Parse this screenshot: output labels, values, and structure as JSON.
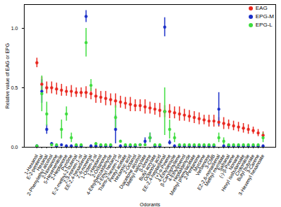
{
  "chart_data": {
    "type": "scatter",
    "x_label": "Odorants",
    "y_label": "Relative value of EAG or EPG",
    "categories": [
      "1-Hexanol",
      "E-2-pentenal",
      "Hexanal",
      "2-Phenylethyl alcohol",
      "2-Nonanone",
      "5-Hexenenitrile",
      "2-Heptanone",
      "Pyridine",
      "E-2-methyl-2-butenal",
      "Z-3-nonen-1-ol",
      "EE-2,4-hexadienal",
      "Z-6-nonenal",
      "1-Octen-3-ol",
      "1-Heptanol",
      "2-Octanone",
      "4-Ethylbenzaldehyde",
      "2-Ethyl hexanol",
      "Trans-2-hexen-1-ol",
      "Pentyl acetate",
      "Hexanoic acid",
      "2-Octanol",
      "Diacetone alcohol",
      "Methyl salicylate",
      "β-ionone",
      "Butyl acrylate",
      "Octanoic acid",
      "EE-2,4-heptadienal",
      "(+)-α-Pinene",
      "4-Ethylanisole",
      "β-Caryophyllene",
      "4-Ethylphenol",
      "Heptaldehyde",
      "Methyl phenylacetate",
      "2-Pentanone",
      "Myrcene",
      "Verbenone",
      "3-CMB",
      "EZ-2,6-nonadienal",
      "Methyl myristate",
      "Safranal",
      "(-)-β-Pinene",
      "Nonane",
      "Hexyl isobutanoate",
      "Crotonitrile",
      "Butyl butyrate",
      "3-Carene",
      "3-Hexenyl hexanoate"
    ],
    "series": [
      {
        "name": "EAG",
        "color": "#e8261e",
        "marker": "circle",
        "values": [
          0.71,
          0.53,
          0.5,
          0.5,
          0.49,
          0.48,
          0.47,
          0.47,
          0.46,
          0.46,
          0.46,
          0.45,
          0.43,
          0.42,
          0.41,
          0.4,
          0.39,
          0.38,
          0.37,
          0.36,
          0.35,
          0.35,
          0.34,
          0.33,
          0.32,
          0.31,
          0.3,
          0.3,
          0.29,
          0.28,
          0.27,
          0.26,
          0.25,
          0.24,
          0.23,
          0.22,
          0.22,
          0.21,
          0.2,
          0.19,
          0.18,
          0.17,
          0.16,
          0.15,
          0.14,
          0.12,
          0.1
        ],
        "errors": [
          0.04,
          0.06,
          0.05,
          0.05,
          0.05,
          0.05,
          0.04,
          0.05,
          0.04,
          0.04,
          0.05,
          0.05,
          0.06,
          0.05,
          0.06,
          0.05,
          0.06,
          0.05,
          0.05,
          0.06,
          0.05,
          0.05,
          0.06,
          0.05,
          0.05,
          0.06,
          0.05,
          0.06,
          0.05,
          0.06,
          0.05,
          0.05,
          0.05,
          0.05,
          0.04,
          0.05,
          0.05,
          0.04,
          0.05,
          0.04,
          0.04,
          0.04,
          0.04,
          0.04,
          0.03,
          0.03,
          0.03
        ]
      },
      {
        "name": "EPG-M",
        "color": "#1a2fc8",
        "marker": "circle",
        "values": [
          0.01,
          0.47,
          0.15,
          0.03,
          0.01,
          0.02,
          0.01,
          0.01,
          0.01,
          0.01,
          1.1,
          0.01,
          0.01,
          0.01,
          0.01,
          0.01,
          0.15,
          0.01,
          0.01,
          0.01,
          0.01,
          0.02,
          0.05,
          0.08,
          0.01,
          0.01,
          1.01,
          0.04,
          0.01,
          0.01,
          0.01,
          0.01,
          0.01,
          0.01,
          0.01,
          0.01,
          0.01,
          0.32,
          0.01,
          0.01,
          0.01,
          0.01,
          0.01,
          0.01,
          0.01,
          0.01,
          0.01
        ],
        "errors": [
          0.01,
          0.1,
          0.04,
          0.01,
          0.01,
          0.01,
          0.01,
          0.01,
          0.01,
          0.01,
          0.05,
          0.01,
          0.01,
          0.01,
          0.01,
          0.01,
          0.12,
          0.01,
          0.01,
          0.01,
          0.01,
          0.01,
          0.03,
          0.04,
          0.01,
          0.01,
          0.08,
          0.02,
          0.01,
          0.01,
          0.01,
          0.01,
          0.01,
          0.01,
          0.01,
          0.01,
          0.01,
          0.14,
          0.01,
          0.01,
          0.01,
          0.01,
          0.01,
          0.01,
          0.01,
          0.01,
          0.01
        ]
      },
      {
        "name": "EPG-L",
        "color": "#3ddc3d",
        "marker": "circle",
        "values": [
          0.01,
          0.45,
          0.28,
          0.02,
          0.02,
          0.15,
          0.28,
          0.08,
          0.02,
          0.02,
          0.88,
          0.52,
          0.03,
          0.02,
          0.02,
          0.02,
          0.25,
          0.05,
          0.02,
          0.02,
          0.02,
          0.02,
          0.02,
          0.08,
          0.02,
          0.02,
          0.3,
          0.15,
          0.08,
          0.02,
          0.02,
          0.02,
          0.02,
          0.02,
          0.02,
          0.02,
          0.02,
          0.08,
          0.05,
          0.02,
          0.02,
          0.02,
          0.02,
          0.02,
          0.02,
          0.02,
          0.08
        ],
        "errors": [
          0.01,
          0.15,
          0.1,
          0.01,
          0.01,
          0.08,
          0.06,
          0.04,
          0.01,
          0.01,
          0.12,
          0.05,
          0.01,
          0.01,
          0.01,
          0.01,
          0.1,
          0.01,
          0.01,
          0.01,
          0.01,
          0.01,
          0.01,
          0.04,
          0.01,
          0.01,
          0.2,
          0.08,
          0.04,
          0.01,
          0.01,
          0.01,
          0.01,
          0.01,
          0.01,
          0.01,
          0.01,
          0.04,
          0.03,
          0.01,
          0.01,
          0.01,
          0.01,
          0.01,
          0.01,
          0.01,
          0.04
        ]
      }
    ],
    "ylim": [
      0,
      1.2
    ],
    "yticks": [
      {
        "value": 0,
        "label": "0.0"
      },
      {
        "value": 0.5,
        "label": "0.5"
      },
      {
        "value": 1,
        "label": "1.0"
      }
    ],
    "legend": "top-right",
    "grid": false
  }
}
